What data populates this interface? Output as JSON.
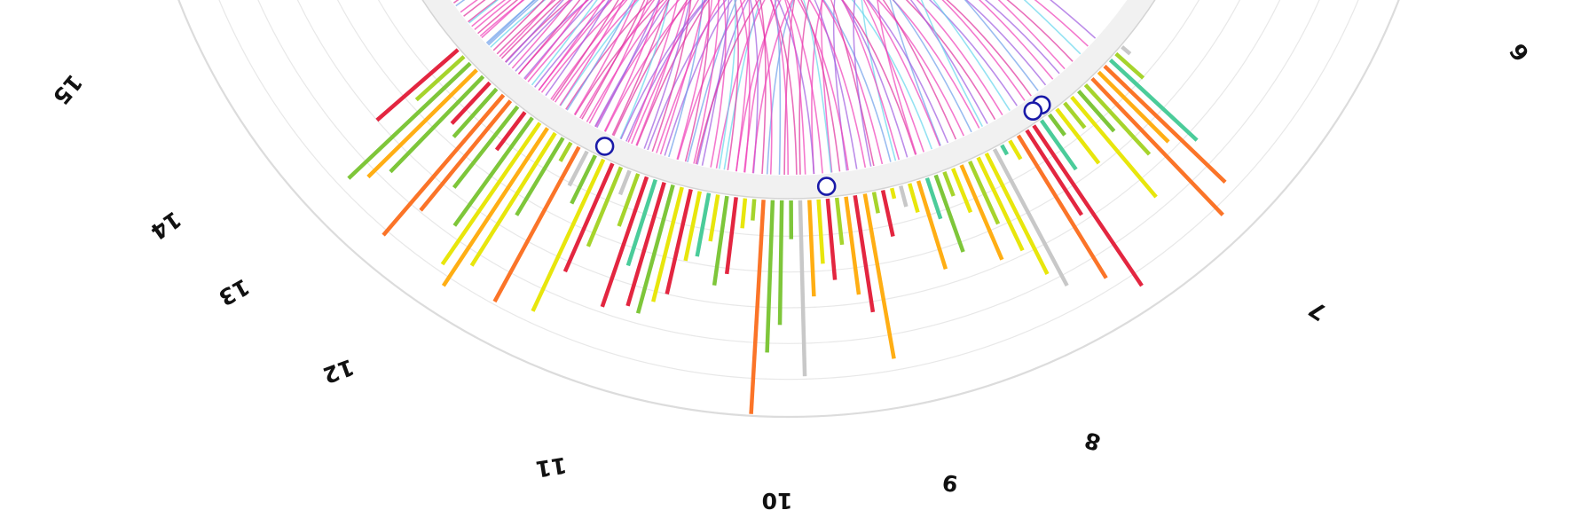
{
  "chart_data": {
    "type": "circos",
    "visible_chromosome_labels": [
      "6",
      "7",
      "8",
      "9",
      "10",
      "11",
      "12",
      "13",
      "14",
      "15"
    ],
    "colors": {
      "red": "#e32640",
      "orange": "#fb7428",
      "amber": "#ffae14",
      "yellow": "#e8e60c",
      "yellowgreen": "#a6d42c",
      "green": "#7ec63a",
      "teal": "#4bcc9a",
      "grey": "#c8c8c8",
      "arc_pink": "#ef3fb8",
      "arc_magenta": "#e0309c",
      "arc_purple": "#a05ce0",
      "arc_blue": "#6fa0ea",
      "arc_cyan": "#65d6ec",
      "marker_stroke": "#1a1aa8"
    },
    "bars": [
      {
        "angle": 130.5,
        "value": 0.05,
        "color": "grey"
      },
      {
        "angle": 131.7,
        "value": 0.17,
        "color": "yellowgreen"
      },
      {
        "angle": 132.8,
        "value": 0.55,
        "color": "teal"
      },
      {
        "angle": 133.9,
        "value": 0.78,
        "color": "orange"
      },
      {
        "angle": 135.0,
        "value": 0.46,
        "color": "amber"
      },
      {
        "angle": 136.2,
        "value": 0.88,
        "color": "orange"
      },
      {
        "angle": 137.4,
        "value": 0.44,
        "color": "yellowgreen"
      },
      {
        "angle": 138.6,
        "value": 0.25,
        "color": "green"
      },
      {
        "angle": 139.8,
        "value": 0.61,
        "color": "yellow"
      },
      {
        "angle": 141.0,
        "value": 0.15,
        "color": "yellowgreen"
      },
      {
        "angle": 142.3,
        "value": 0.32,
        "color": "yellow"
      },
      {
        "angle": 143.5,
        "value": 0.12,
        "color": "green"
      },
      {
        "angle": 144.8,
        "value": 0.28,
        "color": "teal"
      },
      {
        "angle": 146.0,
        "value": 0.9,
        "color": "red"
      },
      {
        "angle": 147.1,
        "value": 0.47,
        "color": "red"
      },
      {
        "angle": 148.4,
        "value": 0.78,
        "color": "orange"
      },
      {
        "angle": 149.7,
        "value": 0.1,
        "color": "yellow"
      },
      {
        "angle": 150.9,
        "value": 0.05,
        "color": "teal"
      },
      {
        "angle": 152.0,
        "value": 0.72,
        "color": "grey"
      },
      {
        "angle": 153.2,
        "value": 0.63,
        "color": "yellow"
      },
      {
        "angle": 154.4,
        "value": 0.48,
        "color": "yellow"
      },
      {
        "angle": 155.6,
        "value": 0.32,
        "color": "yellowgreen"
      },
      {
        "angle": 156.8,
        "value": 0.48,
        "color": "amber"
      },
      {
        "angle": 158.0,
        "value": 0.22,
        "color": "yellow"
      },
      {
        "angle": 159.2,
        "value": 0.12,
        "color": "yellowgreen"
      },
      {
        "angle": 160.4,
        "value": 0.38,
        "color": "green"
      },
      {
        "angle": 161.6,
        "value": 0.2,
        "color": "teal"
      },
      {
        "angle": 162.8,
        "value": 0.43,
        "color": "amber"
      },
      {
        "angle": 164.0,
        "value": 0.14,
        "color": "yellow"
      },
      {
        "angle": 165.2,
        "value": 0.1,
        "color": "grey"
      },
      {
        "angle": 166.4,
        "value": 0.05,
        "color": "yellow"
      },
      {
        "angle": 167.6,
        "value": 0.22,
        "color": "red"
      },
      {
        "angle": 168.8,
        "value": 0.1,
        "color": "yellowgreen"
      },
      {
        "angle": 170.0,
        "value": 0.78,
        "color": "amber"
      },
      {
        "angle": 171.3,
        "value": 0.55,
        "color": "red"
      },
      {
        "angle": 172.5,
        "value": 0.46,
        "color": "amber"
      },
      {
        "angle": 173.7,
        "value": 0.22,
        "color": "yellowgreen"
      },
      {
        "angle": 174.9,
        "value": 0.38,
        "color": "red"
      },
      {
        "angle": 176.1,
        "value": 0.3,
        "color": "yellow"
      },
      {
        "angle": 177.3,
        "value": 0.45,
        "color": "amber"
      },
      {
        "angle": 178.5,
        "value": 0.82,
        "color": "grey"
      },
      {
        "angle": 179.7,
        "value": 0.18,
        "color": "green"
      },
      {
        "angle": 180.9,
        "value": 0.58,
        "color": "green"
      },
      {
        "angle": 182.1,
        "value": 0.71,
        "color": "green"
      },
      {
        "angle": 183.3,
        "value": 1.0,
        "color": "orange"
      },
      {
        "angle": 184.5,
        "value": 0.1,
        "color": "yellowgreen"
      },
      {
        "angle": 185.7,
        "value": 0.14,
        "color": "yellow"
      },
      {
        "angle": 186.9,
        "value": 0.36,
        "color": "red"
      },
      {
        "angle": 188.1,
        "value": 0.42,
        "color": "green"
      },
      {
        "angle": 189.3,
        "value": 0.22,
        "color": "yellow"
      },
      {
        "angle": 190.5,
        "value": 0.3,
        "color": "teal"
      },
      {
        "angle": 191.7,
        "value": 0.33,
        "color": "yellow"
      },
      {
        "angle": 192.9,
        "value": 0.5,
        "color": "red"
      },
      {
        "angle": 194.1,
        "value": 0.55,
        "color": "yellow"
      },
      {
        "angle": 195.3,
        "value": 0.62,
        "color": "green"
      },
      {
        "angle": 196.5,
        "value": 0.6,
        "color": "red"
      },
      {
        "angle": 197.7,
        "value": 0.42,
        "color": "teal"
      },
      {
        "angle": 198.9,
        "value": 0.64,
        "color": "red"
      },
      {
        "angle": 200.1,
        "value": 0.26,
        "color": "yellowgreen"
      },
      {
        "angle": 201.3,
        "value": 0.12,
        "color": "grey"
      },
      {
        "angle": 202.5,
        "value": 0.4,
        "color": "yellowgreen"
      },
      {
        "angle": 203.7,
        "value": 0.55,
        "color": "red"
      },
      {
        "angle": 205.0,
        "value": 0.78,
        "color": "yellow"
      },
      {
        "angle": 206.2,
        "value": 0.25,
        "color": "green"
      },
      {
        "angle": 207.4,
        "value": 0.18,
        "color": "grey"
      },
      {
        "angle": 208.6,
        "value": 0.82,
        "color": "orange"
      },
      {
        "angle": 209.8,
        "value": 0.1,
        "color": "yellowgreen"
      },
      {
        "angle": 211.0,
        "value": 0.42,
        "color": "green"
      },
      {
        "angle": 212.2,
        "value": 0.73,
        "color": "yellow"
      },
      {
        "angle": 213.4,
        "value": 0.88,
        "color": "amber"
      },
      {
        "angle": 214.6,
        "value": 0.8,
        "color": "yellow"
      },
      {
        "angle": 215.8,
        "value": 0.62,
        "color": "green"
      },
      {
        "angle": 217.0,
        "value": 0.22,
        "color": "red"
      },
      {
        "angle": 218.2,
        "value": 0.48,
        "color": "green"
      },
      {
        "angle": 219.4,
        "value": 0.66,
        "color": "orange"
      },
      {
        "angle": 220.6,
        "value": 0.86,
        "color": "orange"
      },
      {
        "angle": 221.8,
        "value": 0.3,
        "color": "green"
      },
      {
        "angle": 223.0,
        "value": 0.26,
        "color": "red"
      },
      {
        "angle": 224.2,
        "value": 0.62,
        "color": "green"
      },
      {
        "angle": 225.4,
        "value": 0.71,
        "color": "amber"
      },
      {
        "angle": 226.6,
        "value": 0.78,
        "color": "green"
      },
      {
        "angle": 227.8,
        "value": 0.3,
        "color": "yellowgreen"
      },
      {
        "angle": 229.0,
        "value": 0.5,
        "color": "red"
      }
    ],
    "arcs": [
      {
        "from": 140.2,
        "to": 176.5,
        "color": "arc_pink"
      },
      {
        "from": 141.5,
        "to": 200.0,
        "color": "arc_purple"
      },
      {
        "from": 142.8,
        "to": 158.4,
        "color": "arc_blue"
      },
      {
        "from": 144.0,
        "to": 211.2,
        "color": "arc_magenta"
      },
      {
        "from": 145.1,
        "to": 187.3,
        "color": "arc_pink"
      },
      {
        "from": 146.4,
        "to": 221.5,
        "color": "arc_purple"
      },
      {
        "from": 147.6,
        "to": 165.0,
        "color": "arc_cyan"
      },
      {
        "from": 148.8,
        "to": 195.6,
        "color": "arc_pink"
      },
      {
        "from": 150.0,
        "to": 231.0,
        "color": "arc_magenta"
      },
      {
        "from": 151.2,
        "to": 171.9,
        "color": "arc_purple"
      },
      {
        "from": 152.5,
        "to": 206.4,
        "color": "arc_pink"
      },
      {
        "from": 153.7,
        "to": 183.0,
        "color": "arc_blue"
      },
      {
        "from": 154.9,
        "to": 216.8,
        "color": "arc_pink"
      },
      {
        "from": 156.1,
        "to": 178.4,
        "color": "arc_magenta"
      },
      {
        "from": 157.3,
        "to": 203.2,
        "color": "arc_purple"
      },
      {
        "from": 158.5,
        "to": 190.1,
        "color": "arc_pink"
      },
      {
        "from": 159.7,
        "to": 226.3,
        "color": "arc_cyan"
      },
      {
        "from": 160.9,
        "to": 174.0,
        "color": "arc_pink"
      },
      {
        "from": 162.1,
        "to": 212.7,
        "color": "arc_magenta"
      },
      {
        "from": 163.3,
        "to": 197.5,
        "color": "arc_purple"
      },
      {
        "from": 164.5,
        "to": 186.2,
        "color": "arc_pink"
      },
      {
        "from": 165.7,
        "to": 233.8,
        "color": "arc_blue"
      },
      {
        "from": 166.9,
        "to": 207.9,
        "color": "arc_pink"
      },
      {
        "from": 168.1,
        "to": 180.6,
        "color": "arc_magenta"
      },
      {
        "from": 169.3,
        "to": 219.2,
        "color": "arc_pink"
      },
      {
        "from": 170.5,
        "to": 192.8,
        "color": "arc_purple"
      },
      {
        "from": 171.7,
        "to": 228.4,
        "color": "arc_pink"
      },
      {
        "from": 172.9,
        "to": 201.6,
        "color": "arc_magenta"
      },
      {
        "from": 174.1,
        "to": 189.0,
        "color": "arc_cyan"
      },
      {
        "from": 175.3,
        "to": 214.5,
        "color": "arc_pink"
      },
      {
        "from": 176.5,
        "to": 236.0,
        "color": "arc_purple"
      },
      {
        "from": 177.7,
        "to": 198.7,
        "color": "arc_pink"
      },
      {
        "from": 178.9,
        "to": 223.4,
        "color": "arc_magenta"
      },
      {
        "from": 180.1,
        "to": 209.3,
        "color": "arc_pink"
      },
      {
        "from": 181.3,
        "to": 194.2,
        "color": "arc_blue"
      },
      {
        "from": 182.5,
        "to": 230.2,
        "color": "arc_pink"
      },
      {
        "from": 183.7,
        "to": 205.1,
        "color": "arc_magenta"
      },
      {
        "from": 184.9,
        "to": 218.0,
        "color": "arc_purple"
      },
      {
        "from": 186.1,
        "to": 239.4,
        "color": "arc_pink"
      },
      {
        "from": 187.3,
        "to": 202.4,
        "color": "arc_pink"
      },
      {
        "from": 188.5,
        "to": 225.0,
        "color": "arc_magenta"
      },
      {
        "from": 189.7,
        "to": 213.6,
        "color": "arc_cyan"
      },
      {
        "from": 190.9,
        "to": 232.7,
        "color": "arc_pink"
      },
      {
        "from": 192.1,
        "to": 208.0,
        "color": "arc_purple"
      },
      {
        "from": 193.3,
        "to": 220.9,
        "color": "arc_pink"
      },
      {
        "from": 194.5,
        "to": 237.6,
        "color": "arc_magenta"
      },
      {
        "from": 195.7,
        "to": 215.2,
        "color": "arc_pink"
      },
      {
        "from": 196.9,
        "to": 227.1,
        "color": "arc_blue"
      },
      {
        "from": 198.1,
        "to": 210.4,
        "color": "arc_pink"
      },
      {
        "from": 199.3,
        "to": 234.3,
        "color": "arc_magenta"
      },
      {
        "from": 200.5,
        "to": 222.8,
        "color": "arc_purple"
      },
      {
        "from": 201.7,
        "to": 217.3,
        "color": "arc_pink"
      },
      {
        "from": 202.9,
        "to": 229.6,
        "color": "arc_pink"
      },
      {
        "from": 204.1,
        "to": 241.0,
        "color": "arc_cyan"
      },
      {
        "from": 205.3,
        "to": 224.1,
        "color": "arc_magenta"
      },
      {
        "from": 206.5,
        "to": 235.2,
        "color": "arc_pink"
      },
      {
        "from": 207.7,
        "to": 219.9,
        "color": "arc_purple"
      },
      {
        "from": 208.9,
        "to": 238.5,
        "color": "arc_pink"
      },
      {
        "from": 210.1,
        "to": 228.9,
        "color": "arc_magenta"
      },
      {
        "from": 211.3,
        "to": 243.0,
        "color": "arc_pink"
      },
      {
        "from": 212.5,
        "to": 226.7,
        "color": "arc_blue"
      },
      {
        "from": 213.7,
        "to": 240.1,
        "color": "arc_pink"
      },
      {
        "from": 214.9,
        "to": 232.0,
        "color": "arc_magenta"
      },
      {
        "from": 216.1,
        "to": 245.2,
        "color": "arc_purple"
      },
      {
        "from": 217.3,
        "to": 236.9,
        "color": "arc_pink"
      },
      {
        "from": 218.5,
        "to": 230.8,
        "color": "arc_cyan"
      },
      {
        "from": 219.7,
        "to": 247.0,
        "color": "arc_pink"
      },
      {
        "from": 220.9,
        "to": 239.0,
        "color": "arc_magenta"
      },
      {
        "from": 222.1,
        "to": 244.3,
        "color": "arc_pink"
      },
      {
        "from": 223.3,
        "to": 234.9,
        "color": "arc_purple"
      },
      {
        "from": 224.5,
        "to": 249.0,
        "color": "arc_pink"
      },
      {
        "from": 225.7,
        "to": 242.2,
        "color": "arc_magenta"
      },
      {
        "from": 226.9,
        "to": 238.1,
        "color": "arc_blue"
      },
      {
        "from": 228.1,
        "to": 246.0,
        "color": "arc_pink"
      },
      {
        "from": 132.0,
        "to": 168.5,
        "color": "arc_purple"
      },
      {
        "from": 133.5,
        "to": 185.0,
        "color": "arc_pink"
      },
      {
        "from": 135.0,
        "to": 152.0,
        "color": "arc_cyan"
      },
      {
        "from": 136.5,
        "to": 193.0,
        "color": "arc_magenta"
      },
      {
        "from": 138.0,
        "to": 162.0,
        "color": "arc_pink"
      },
      {
        "from": 139.0,
        "to": 204.0,
        "color": "arc_purple"
      }
    ],
    "markers": [
      {
        "angle": 143.6
      },
      {
        "angle": 145.0
      },
      {
        "angle": 174.9
      },
      {
        "angle": 205.6
      }
    ]
  }
}
